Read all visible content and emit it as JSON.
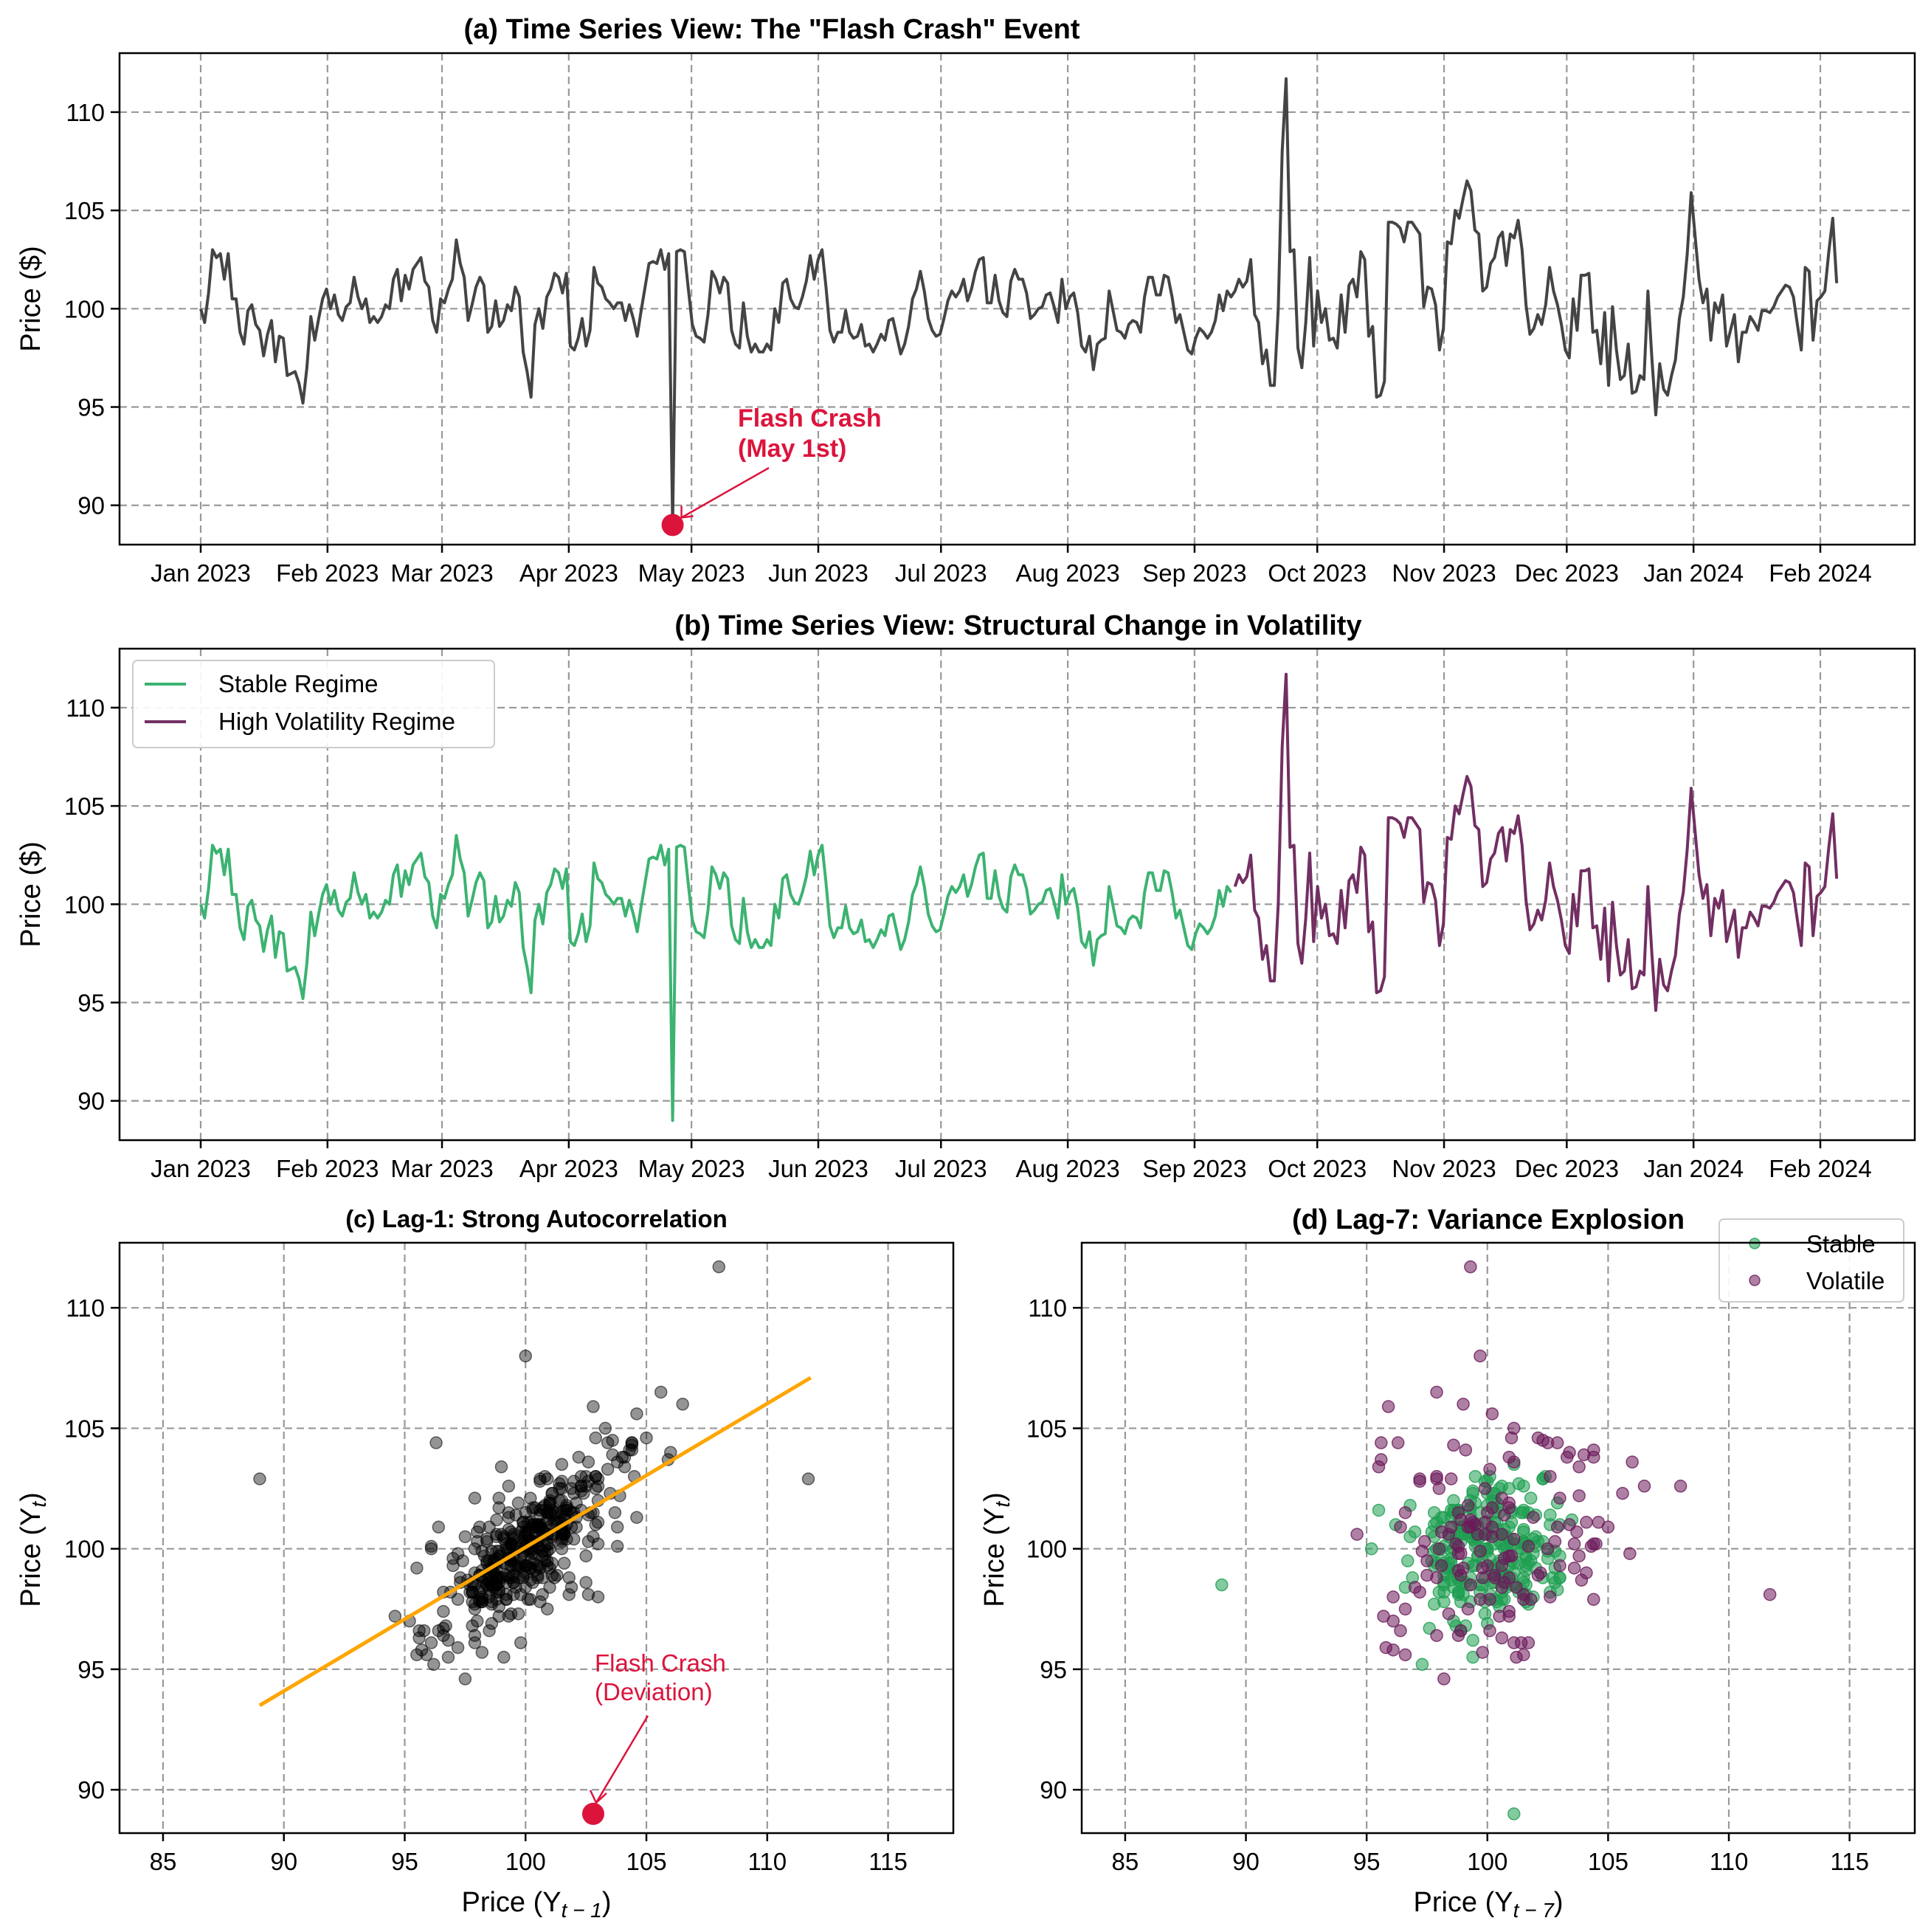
{
  "chart_data": [
    {
      "id": "a",
      "type": "line",
      "title": "(a) Time Series View: The \"Flash Crash\" Event",
      "xlabel": "",
      "ylabel": "Price ($)",
      "x_start": "2023-01-01",
      "x_end": "2024-02-05",
      "xticks": [
        "Jan 2023",
        "Feb 2023",
        "Mar 2023",
        "Apr 2023",
        "May 2023",
        "Jun 2023",
        "Jul 2023",
        "Aug 2023",
        "Sep 2023",
        "Oct 2023",
        "Nov 2023",
        "Dec 2023",
        "Jan 2024",
        "Feb 2024"
      ],
      "yticks": [
        90,
        95,
        100,
        105,
        110
      ],
      "ylim": [
        88,
        113
      ],
      "grid": true,
      "line_color": "#444444",
      "annotation": {
        "text_line1": "Flash Crash",
        "text_line2": "(May 1st)",
        "date": "2023-05-01",
        "value": 89.0,
        "color": "#DC143C"
      }
    },
    {
      "id": "b",
      "type": "line",
      "title": "(b) Time Series View: Structural Change in Volatility",
      "xlabel": "",
      "ylabel": "Price ($)",
      "xticks": [
        "Jan 2023",
        "Feb 2023",
        "Mar 2023",
        "Apr 2023",
        "May 2023",
        "Jun 2023",
        "Jul 2023",
        "Aug 2023",
        "Sep 2023",
        "Oct 2023",
        "Nov 2023",
        "Dec 2023",
        "Jan 2024",
        "Feb 2024"
      ],
      "yticks": [
        90,
        95,
        100,
        105,
        110
      ],
      "ylim": [
        88,
        113
      ],
      "grid": true,
      "regime_break": "2023-09-10",
      "legend": {
        "placement": "top-left",
        "entries": [
          {
            "label": "Stable Regime",
            "color": "#3CB371"
          },
          {
            "label": "High Volatility Regime",
            "color": "#722F62"
          }
        ]
      }
    },
    {
      "id": "c",
      "type": "scatter",
      "title": "(c) Lag-1: Strong Autocorrelation",
      "xlabel": "Price (Y",
      "xlabel_sub": "t − 1",
      "ylabel": "Price (Y",
      "ylabel_sub": "t",
      "xticks": [
        85,
        90,
        95,
        100,
        105,
        110,
        115
      ],
      "yticks": [
        90,
        95,
        100,
        105,
        110
      ],
      "xlim": [
        83.2,
        117.7
      ],
      "ylim": [
        88.2,
        112.7
      ],
      "grid": true,
      "point_color": "#000000",
      "fit_line": {
        "color": "#FFA500",
        "x": [
          89.0,
          111.8
        ],
        "y": [
          93.5,
          107.1
        ]
      },
      "annotation": {
        "text_line1": "Flash Crash",
        "text_line2": "(Deviation)",
        "x": 102.8,
        "y": 89.0,
        "color": "#DC143C"
      }
    },
    {
      "id": "d",
      "type": "scatter",
      "title": "(d) Lag-7: Variance Explosion",
      "xlabel": "Price (Y",
      "xlabel_sub": "t − 7",
      "ylabel": "Price (Y",
      "ylabel_sub": "t",
      "xticks": [
        85,
        90,
        95,
        100,
        105,
        110,
        115
      ],
      "yticks": [
        90,
        95,
        100,
        105,
        110
      ],
      "xlim": [
        83.2,
        117.7
      ],
      "ylim": [
        88.2,
        112.7
      ],
      "grid": true,
      "legend": {
        "placement": "top-right",
        "entries": [
          {
            "label": "Stable",
            "color": "#1E9E50"
          },
          {
            "label": "Volatile",
            "color": "#6B1A5A"
          }
        ]
      }
    }
  ],
  "series": {
    "seed_values_note": "",
    "values": [
      100.0,
      99.3,
      100.8,
      103.0,
      102.6,
      102.8,
      101.5,
      102.8,
      100.5,
      100.5,
      98.8,
      98.2,
      99.9,
      100.2,
      99.2,
      98.9,
      97.6,
      98.7,
      99.4,
      97.3,
      98.6,
      98.5,
      96.6,
      96.7,
      96.8,
      96.2,
      95.2,
      97.0,
      99.6,
      98.4,
      99.5,
      100.5,
      101.0,
      100.0,
      100.7,
      99.7,
      99.4,
      100.1,
      100.3,
      101.6,
      100.6,
      100.0,
      100.5,
      99.3,
      99.6,
      99.3,
      99.6,
      100.2,
      100.0,
      101.5,
      102.0,
      100.4,
      101.7,
      101.0,
      102.0,
      102.3,
      102.6,
      101.4,
      101.1,
      99.4,
      98.8,
      100.5,
      100.3,
      101.0,
      101.5,
      103.5,
      102.3,
      101.6,
      99.4,
      100.2,
      101.1,
      101.6,
      101.2,
      98.8,
      99.1,
      100.4,
      99.1,
      99.4,
      100.2,
      99.9,
      101.1,
      100.6,
      97.8,
      96.8,
      95.5,
      99.2,
      100.0,
      99.0,
      100.6,
      101.0,
      101.8,
      101.6,
      100.8,
      101.8,
      98.1,
      97.9,
      98.5,
      99.5,
      98.1,
      98.9,
      102.1,
      101.3,
      101.1,
      100.5,
      100.3,
      100.0,
      100.3,
      100.3,
      99.4,
      100.2,
      99.5,
      98.6,
      99.9,
      101.1,
      102.3,
      102.4,
      102.3,
      103.0,
      102.0,
      102.8,
      89.0,
      102.9,
      103.0,
      102.9,
      101.0,
      99.2,
      98.6,
      98.5,
      98.3,
      99.7,
      101.9,
      101.5,
      100.8,
      101.6,
      101.3,
      98.9,
      98.2,
      98.0,
      100.3,
      98.6,
      97.8,
      98.2,
      97.8,
      97.8,
      98.2,
      97.9,
      100.0,
      99.3,
      101.3,
      101.5,
      100.5,
      100.1,
      100.0,
      100.6,
      101.4,
      102.7,
      101.5,
      102.5,
      103.0,
      101.1,
      98.9,
      98.3,
      98.8,
      98.8,
      99.9,
      98.8,
      98.5,
      98.6,
      99.2,
      98.1,
      98.2,
      97.8,
      98.2,
      98.7,
      98.4,
      99.4,
      99.5,
      98.6,
      97.7,
      98.2,
      99.1,
      100.5,
      101.0,
      101.9,
      100.9,
      99.5,
      98.9,
      98.6,
      98.7,
      99.5,
      100.4,
      100.9,
      100.6,
      100.9,
      101.5,
      100.4,
      101.0,
      101.9,
      102.5,
      102.6,
      100.3,
      100.3,
      101.7,
      100.4,
      99.8,
      99.6,
      101.4,
      102.0,
      101.5,
      101.5,
      100.8,
      99.5,
      99.7,
      100.0,
      100.1,
      100.7,
      100.8,
      100.1,
      99.3,
      101.5,
      100.0,
      100.6,
      100.8,
      99.8,
      98.1,
      97.8,
      98.6,
      96.9,
      98.2,
      98.4,
      98.5,
      100.9,
      99.9,
      98.9,
      98.8,
      98.5,
      99.2,
      99.4,
      99.3,
      98.8,
      100.6,
      101.6,
      101.6,
      100.7,
      100.7,
      101.7,
      101.6,
      100.6,
      99.3,
      99.7,
      98.8,
      97.9,
      97.7,
      98.5,
      99.0,
      98.8,
      98.5,
      98.8,
      99.4,
      100.7,
      99.9,
      100.9,
      100.6,
      100.9,
      101.5,
      101.1,
      101.4,
      102.5,
      99.7,
      99.3,
      97.2,
      97.9,
      96.1,
      96.1,
      100.0,
      108.0,
      111.7,
      102.9,
      103.0,
      98.0,
      97.0,
      99.3,
      102.6,
      98.1,
      100.9,
      99.3,
      100.0,
      98.4,
      98.5,
      98.0,
      100.7,
      98.8,
      101.2,
      101.5,
      100.6,
      102.9,
      102.5,
      98.6,
      99.1,
      95.5,
      95.6,
      96.3,
      104.4,
      104.4,
      104.3,
      104.1,
      103.4,
      104.4,
      104.4,
      104.1,
      103.8,
      100.1,
      101.1,
      101.0,
      100.2,
      97.9,
      99.0,
      103.4,
      103.3,
      105.0,
      104.6,
      105.6,
      106.5,
      106.0,
      104.0,
      103.8,
      100.9,
      101.1,
      102.3,
      102.6,
      103.6,
      103.9,
      102.2,
      103.8,
      103.6,
      104.5,
      103.0,
      100.2,
      98.7,
      99.0,
      99.7,
      99.2,
      100.2,
      102.1,
      100.9,
      100.2,
      99.2,
      97.9,
      97.5,
      100.5,
      98.9,
      101.7,
      101.7,
      101.8,
      98.8,
      98.9,
      97.2,
      99.8,
      96.1,
      100.1,
      97.9,
      96.4,
      96.6,
      98.2,
      95.7,
      95.8,
      96.6,
      96.4,
      100.9,
      97.5,
      94.6,
      97.2,
      95.9,
      95.6,
      96.6,
      97.4,
      99.5,
      100.6,
      102.8,
      105.9,
      103.7,
      101.5,
      100.3,
      101.0,
      98.4,
      100.3,
      99.8,
      100.7,
      98.1,
      98.9,
      99.7,
      97.3,
      98.8,
      98.8,
      99.6,
      99.3,
      98.9,
      99.9,
      99.9,
      99.8,
      100.1,
      100.6,
      100.9,
      101.2,
      101.1,
      100.6,
      99.2,
      97.9,
      102.1,
      101.9,
      98.4,
      100.4,
      100.6,
      100.9,
      102.9,
      104.6,
      101.3
    ]
  }
}
